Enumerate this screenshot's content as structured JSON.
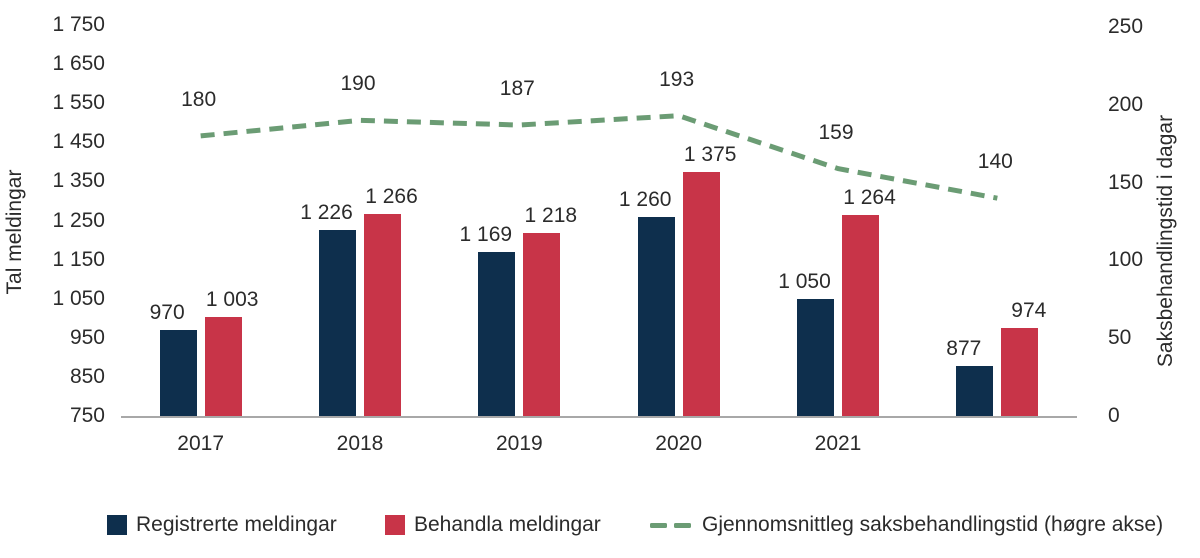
{
  "chart_data": {
    "type": "bar",
    "subtype": "grouped-bars-with-line-overlay",
    "categories": [
      "2017",
      "2018",
      "2019",
      "2020",
      "2021",
      ""
    ],
    "series": [
      {
        "name": "Registrerte meldingar",
        "kind": "bar",
        "axis": "left",
        "color": "#0e2f4d",
        "values": [
          970,
          1226,
          1169,
          1260,
          1050,
          877
        ],
        "labels": [
          "970",
          "1 226",
          "1 169",
          "1 260",
          "1 050",
          "877"
        ]
      },
      {
        "name": "Behandla meldingar",
        "kind": "bar",
        "axis": "left",
        "color": "#c83448",
        "values": [
          1003,
          1266,
          1218,
          1375,
          1264,
          974
        ],
        "labels": [
          "1 003",
          "1 266",
          "1 218",
          "1 375",
          "1 264",
          "974"
        ]
      },
      {
        "name": "Gjennomsnittleg saksbehandlingstid (høgre akse)",
        "kind": "line",
        "axis": "right",
        "dashed": true,
        "color": "#6b9c74",
        "values": [
          180,
          190,
          187,
          193,
          159,
          140
        ],
        "labels": [
          "180",
          "190",
          "187",
          "193",
          "159",
          "140"
        ]
      }
    ],
    "left_axis": {
      "label": "Tal meldingar",
      "min": 750,
      "max": 1750,
      "step": 100,
      "ticks": [
        "1 750",
        "1 650",
        "1 550",
        "1 450",
        "1 350",
        "1 250",
        "1 150",
        "1 050",
        "950",
        "850",
        "750"
      ]
    },
    "right_axis": {
      "label": "Saksbehandlingstid i dagar",
      "min": 0,
      "max": 250,
      "step": 50,
      "ticks": [
        "250",
        "200",
        "150",
        "100",
        "50",
        "0"
      ]
    },
    "grid": false,
    "legend_position": "bottom",
    "colors": {
      "bar1": "#0e2f4d",
      "bar2": "#c83448",
      "line": "#6b9c74",
      "axis_line": "#a8a8a8",
      "text": "#2b2b2b"
    }
  }
}
